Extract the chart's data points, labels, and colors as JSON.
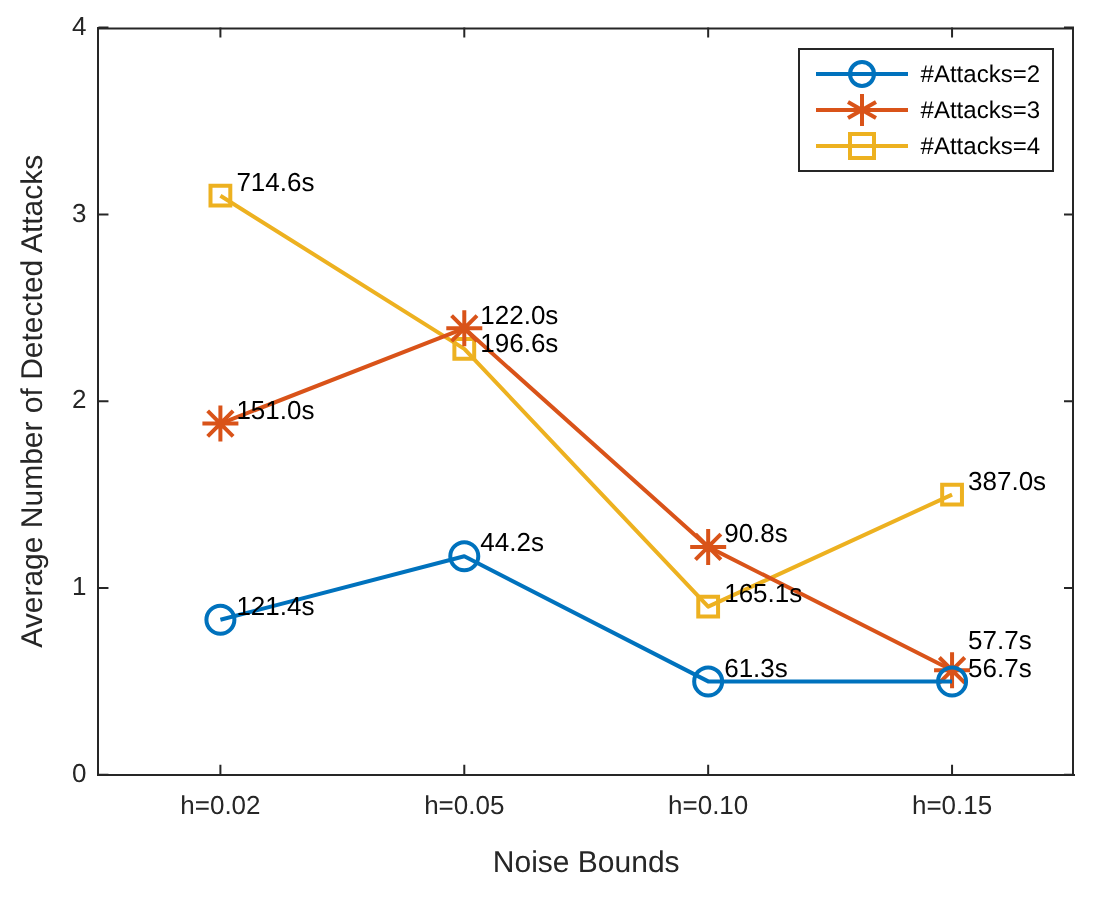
{
  "chart_data": {
    "type": "line",
    "xlabel": "Noise Bounds",
    "ylabel": "Average Number of Detected Attacks",
    "categories": [
      "h=0.02",
      "h=0.05",
      "h=0.10",
      "h=0.15"
    ],
    "ylim": [
      0,
      4
    ],
    "yticks": [
      0,
      1,
      2,
      3,
      4
    ],
    "grid": false,
    "legend": "top right",
    "line_style": "solid",
    "series": [
      {
        "name": "#Attacks=2",
        "color": "#0072bd",
        "marker": "circle",
        "values": [
          0.83,
          1.17,
          0.5,
          0.5
        ]
      },
      {
        "name": "#Attacks=3",
        "color": "#d95319",
        "marker": "cross",
        "values": [
          1.88,
          2.39,
          1.22,
          0.56
        ]
      },
      {
        "name": "#Attacks=4",
        "color": "#edb120",
        "marker": "square",
        "values": [
          3.1,
          2.28,
          0.9,
          1.5
        ]
      }
    ],
    "annotations": [
      {
        "text": "121.4s",
        "x": "h=0.02",
        "y": 0.83
      },
      {
        "text": "44.2s",
        "x": "h=0.05",
        "y": 1.17
      },
      {
        "text": "61.3s",
        "x": "h=0.10",
        "y": 0.5
      },
      {
        "text": "56.7s",
        "x": "h=0.15",
        "y": 0.5
      },
      {
        "text": "151.0s",
        "x": "h=0.02",
        "y": 1.88
      },
      {
        "text": "122.0s",
        "x": "h=0.05",
        "y": 2.39
      },
      {
        "text": "90.8s",
        "x": "h=0.10",
        "y": 1.22
      },
      {
        "text": "57.7s",
        "x": "h=0.15",
        "y": 0.56
      },
      {
        "text": "714.6s",
        "x": "h=0.02",
        "y": 3.1
      },
      {
        "text": "196.6s",
        "x": "h=0.05",
        "y": 2.28
      },
      {
        "text": "165.1s",
        "x": "h=0.10",
        "y": 0.9
      },
      {
        "text": "387.0s",
        "x": "h=0.15",
        "y": 1.5
      }
    ]
  }
}
